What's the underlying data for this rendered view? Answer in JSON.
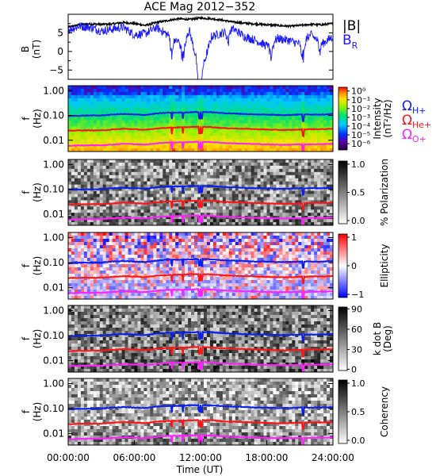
{
  "title": "ACE Mag 2012−352",
  "colors": {
    "B_total": "#000000",
    "B_R": "#1a1aff",
    "omega_H": "#0a1ef0",
    "omega_He": "#ff1414",
    "omega_O": "#ff20ff"
  },
  "x_axis": {
    "label": "Time (UT)",
    "ticks": [
      "00:00:00",
      "06:00:00",
      "12:00:00",
      "18:00:00",
      "24:00:00"
    ],
    "tick_hours": [
      0,
      6,
      12,
      18,
      24
    ],
    "range_hours": [
      0,
      24
    ]
  },
  "line_panel": {
    "ylabel": "B",
    "yunits": "(nT)",
    "ylim": [
      -7.5,
      10
    ],
    "yticks": [
      "5",
      "0",
      "−5"
    ],
    "ytick_values": [
      5,
      0,
      -5
    ],
    "legend_total": "|B|",
    "legend_r_main": "B",
    "legend_r_sub": "R"
  },
  "freq_axis": {
    "ylabel": "f",
    "yunits": "(Hz)",
    "ticks": [
      "1.00",
      "0.10",
      "0.01"
    ],
    "tick_values": [
      1.0,
      0.1,
      0.01
    ],
    "scale": "log",
    "range": [
      0.0035,
      1.6
    ]
  },
  "gyro_legend": {
    "omega": "Ω",
    "H": "H+",
    "He": "He+",
    "O": "O+"
  },
  "panels": [
    {
      "id": "intensity",
      "colormap": "rainbow",
      "colorbar_label_1": "Intensity",
      "colorbar_label_2": "(nT²/Hz)",
      "colorbar_ticks": [
        "10⁰",
        "10⁻¹",
        "10⁻²",
        "10⁻³",
        "10⁻⁴",
        "10⁻⁵",
        "10⁻⁶"
      ],
      "colorbar_tick_fracs": [
        0.94,
        0.8,
        0.66,
        0.52,
        0.38,
        0.24,
        0.1
      ]
    },
    {
      "id": "polarization",
      "colormap": "grey",
      "colorbar_label_1": "% Polarization",
      "colorbar_label_2": "",
      "colorbar_ticks": [
        "1.0",
        "0.5",
        "0.0"
      ],
      "colorbar_tick_fracs": [
        0.95,
        0.5,
        0.05
      ]
    },
    {
      "id": "ellipticity",
      "colormap": "bwr",
      "colorbar_label_1": "Ellipticity",
      "colorbar_label_2": "",
      "colorbar_ticks": [
        "1",
        "0",
        "−1"
      ],
      "colorbar_tick_fracs": [
        0.95,
        0.5,
        0.05
      ]
    },
    {
      "id": "kdotb",
      "colormap": "grey",
      "colorbar_label_1": "k dot B",
      "colorbar_label_2": "(Deg)",
      "colorbar_ticks": [
        "90",
        "60",
        "30",
        "0"
      ],
      "colorbar_tick_fracs": [
        0.97,
        0.65,
        0.33,
        0.02
      ]
    },
    {
      "id": "coherency",
      "colormap": "grey",
      "colorbar_label_1": "Coherency",
      "colorbar_label_2": "",
      "colorbar_ticks": [
        "1.0",
        "0.5",
        "0.0"
      ],
      "colorbar_tick_fracs": [
        0.95,
        0.5,
        0.05
      ]
    }
  ],
  "chart_data": {
    "type": "line",
    "title": "ACE Mag 2012−352",
    "xlabel": "Time (UT)",
    "x_hours": [
      0,
      1,
      2,
      3,
      4,
      5,
      6,
      7,
      8,
      9,
      10,
      11,
      12,
      13,
      14,
      15,
      16,
      17,
      18,
      19,
      20,
      21,
      22,
      23,
      24
    ],
    "series": [
      {
        "name": "|B|",
        "unit": "nT",
        "values": [
          6.5,
          7.2,
          7.4,
          7.3,
          7.4,
          7.8,
          7.5,
          7.0,
          7.8,
          8.3,
          8.8,
          8.6,
          9.0,
          8.8,
          8.4,
          7.9,
          7.6,
          7.4,
          7.2,
          7.0,
          6.8,
          7.0,
          7.3,
          7.2,
          7.5
        ]
      },
      {
        "name": "B_R",
        "unit": "nT",
        "values": [
          5.8,
          6.8,
          6.5,
          5.5,
          6.0,
          6.5,
          4.5,
          4.8,
          6.5,
          4.5,
          2.5,
          5.5,
          -6.5,
          4.0,
          5.0,
          6.0,
          4.0,
          3.0,
          1.5,
          3.5,
          3.0,
          2.0,
          4.5,
          2.0,
          4.0
        ]
      },
      {
        "name": "ΩH+",
        "unit": "Hz",
        "values": [
          0.095,
          0.098,
          0.1,
          0.1,
          0.11,
          0.115,
          0.11,
          0.105,
          0.12,
          0.13,
          0.13,
          0.135,
          0.14,
          0.135,
          0.125,
          0.12,
          0.115,
          0.11,
          0.11,
          0.105,
          0.105,
          0.11,
          0.11,
          0.11,
          0.115
        ]
      },
      {
        "name": "ΩHe+",
        "unit": "Hz",
        "values": [
          0.024,
          0.025,
          0.025,
          0.025,
          0.027,
          0.029,
          0.028,
          0.026,
          0.03,
          0.032,
          0.033,
          0.034,
          0.035,
          0.034,
          0.031,
          0.03,
          0.029,
          0.028,
          0.027,
          0.026,
          0.026,
          0.027,
          0.028,
          0.028,
          0.029
        ]
      },
      {
        "name": "ΩO+",
        "unit": "Hz",
        "values": [
          0.006,
          0.0062,
          0.0063,
          0.0063,
          0.0067,
          0.0072,
          0.007,
          0.0066,
          0.0075,
          0.0081,
          0.0082,
          0.0084,
          0.0088,
          0.0084,
          0.0078,
          0.0075,
          0.0072,
          0.007,
          0.0068,
          0.0066,
          0.0066,
          0.0068,
          0.0069,
          0.0069,
          0.0072
        ]
      }
    ]
  }
}
